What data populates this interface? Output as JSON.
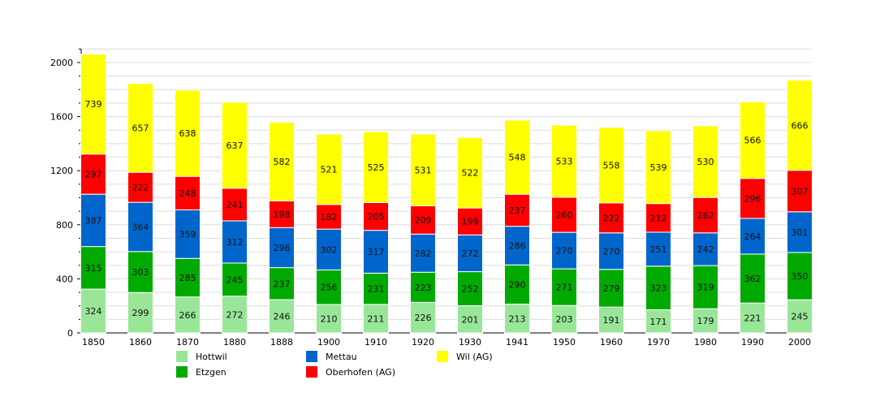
{
  "chart_data": {
    "type": "bar",
    "stacked": true,
    "categories": [
      "1850",
      "1860",
      "1870",
      "1880",
      "1888",
      "1900",
      "1910",
      "1920",
      "1930",
      "1941",
      "1950",
      "1960",
      "1970",
      "1980",
      "1990",
      "2000"
    ],
    "series": [
      {
        "name": "Hottwil",
        "color": "#99e699",
        "values": [
          324,
          299,
          266,
          272,
          246,
          210,
          211,
          226,
          201,
          213,
          203,
          191,
          171,
          179,
          221,
          245
        ]
      },
      {
        "name": "Etzgen",
        "color": "#00aa00",
        "values": [
          315,
          303,
          285,
          245,
          237,
          256,
          231,
          223,
          252,
          290,
          271,
          279,
          323,
          319,
          362,
          350
        ]
      },
      {
        "name": "Mettau",
        "color": "#0066cc",
        "values": [
          387,
          364,
          359,
          312,
          296,
          302,
          317,
          282,
          272,
          286,
          270,
          270,
          251,
          242,
          264,
          301
        ]
      },
      {
        "name": "Oberhofen (AG)",
        "color": "#ff0000",
        "values": [
          297,
          222,
          248,
          241,
          198,
          182,
          205,
          209,
          199,
          237,
          260,
          222,
          212,
          262,
          296,
          307
        ]
      },
      {
        "name": "Wil (AG)",
        "color": "#ffff00",
        "values": [
          739,
          657,
          638,
          637,
          582,
          521,
          525,
          531,
          522,
          548,
          533,
          558,
          539,
          530,
          566,
          666
        ]
      }
    ],
    "yticks": [
      "0",
      "400",
      "800",
      "1200",
      "1600",
      "2000"
    ],
    "ylim": [
      0,
      2100
    ],
    "grid": true,
    "legend_position": "bottom"
  }
}
